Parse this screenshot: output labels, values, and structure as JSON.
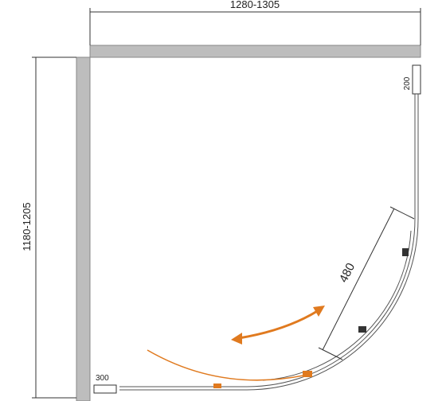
{
  "dimensions": {
    "width": "1280-1305",
    "depth": "1180-1205",
    "side_panel": "200",
    "door": "480",
    "bottom_panel": "300"
  }
}
